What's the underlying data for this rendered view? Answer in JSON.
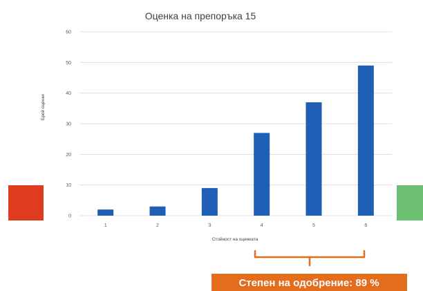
{
  "chart_data": {
    "type": "bar",
    "title": "Оценка на препоръка 15",
    "xlabel": "Стойност на оценката",
    "ylabel": "Брой оценки",
    "categories": [
      "1",
      "2",
      "3",
      "4",
      "5",
      "6"
    ],
    "values": [
      2,
      3,
      9,
      27,
      37,
      49
    ],
    "ylim": [
      0,
      60
    ],
    "yticks": [
      0,
      10,
      20,
      30,
      40,
      50,
      60
    ],
    "grid": true,
    "colors": {
      "bar": "#1f5fb5",
      "grid": "#d9d9d9"
    }
  },
  "left_marker": {
    "color": "#e03a21"
  },
  "right_marker": {
    "color": "#6cbf73"
  },
  "approval": {
    "label": "Степен на одобрение: 89 %",
    "color": "#e46c1d"
  }
}
